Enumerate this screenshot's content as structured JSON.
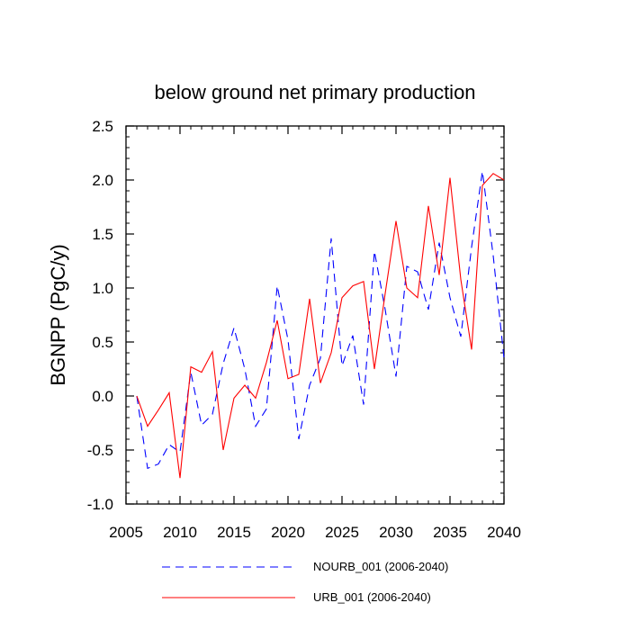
{
  "chart_data": {
    "type": "line",
    "title": "below ground net primary production",
    "xlabel": "",
    "ylabel": "BGNPP  (PgC/y)",
    "xlim": [
      2005,
      2040
    ],
    "ylim": [
      -1.0,
      2.5
    ],
    "x_ticks": [
      2005,
      2010,
      2015,
      2020,
      2025,
      2030,
      2035,
      2040
    ],
    "x_tick_labels": [
      "2005",
      "2010",
      "2015",
      "2020",
      "2025",
      "2030",
      "2035",
      "2040"
    ],
    "y_ticks": [
      -1.0,
      -0.5,
      0.0,
      0.5,
      1.0,
      1.5,
      2.0,
      2.5
    ],
    "y_tick_labels": [
      "-1.0",
      "-0.5",
      "0.0",
      "0.5",
      "1.0",
      "1.5",
      "2.0",
      "2.5"
    ],
    "grid": false,
    "legend_position": "bottom",
    "x": [
      2006,
      2007,
      2008,
      2009,
      2010,
      2011,
      2012,
      2013,
      2014,
      2015,
      2016,
      2017,
      2018,
      2019,
      2020,
      2021,
      2022,
      2023,
      2024,
      2025,
      2026,
      2027,
      2028,
      2029,
      2030,
      2031,
      2032,
      2033,
      2034,
      2035,
      2036,
      2037,
      2038,
      2039,
      2040
    ],
    "series": [
      {
        "name": "NOURB_001 (2006-2040)",
        "color": "#0000ff",
        "dash": "dashed",
        "values": [
          0.0,
          -0.67,
          -0.63,
          -0.45,
          -0.52,
          0.22,
          -0.27,
          -0.17,
          0.3,
          0.63,
          0.25,
          -0.28,
          -0.12,
          1.02,
          0.52,
          -0.4,
          0.1,
          0.35,
          1.46,
          0.28,
          0.56,
          -0.08,
          1.34,
          0.8,
          0.18,
          1.2,
          1.15,
          0.8,
          1.42,
          0.91,
          0.55,
          1.38,
          2.08,
          1.3,
          0.35
        ]
      },
      {
        "name": "URB_001 (2006-2040)",
        "color": "#ff0000",
        "dash": "solid",
        "values": [
          0.0,
          -0.28,
          -0.13,
          0.03,
          -0.76,
          0.27,
          0.22,
          0.41,
          -0.5,
          -0.02,
          0.1,
          -0.02,
          0.31,
          0.7,
          0.16,
          0.2,
          0.9,
          0.12,
          0.4,
          0.91,
          1.02,
          1.06,
          0.25,
          0.95,
          1.62,
          1.0,
          0.91,
          1.76,
          1.12,
          2.02,
          1.08,
          0.43,
          1.95,
          2.06,
          2.0
        ]
      }
    ]
  }
}
